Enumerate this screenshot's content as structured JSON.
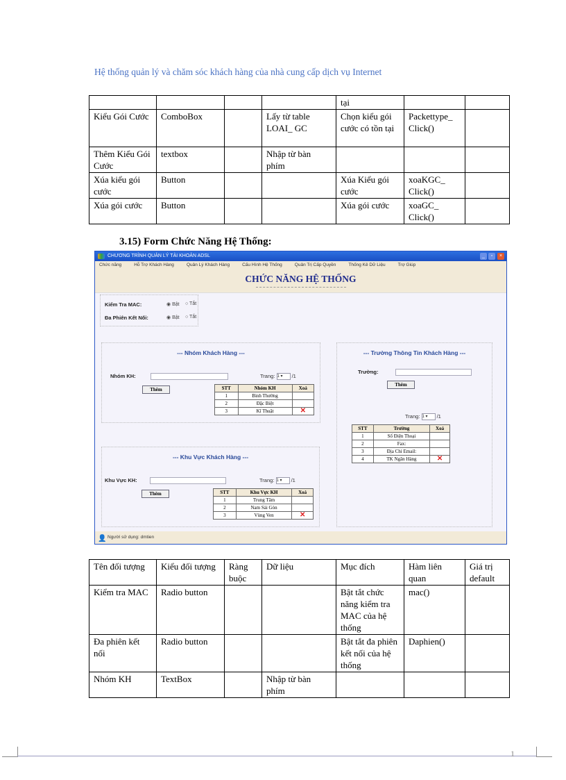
{
  "header": "Hệ thống quản lý và chăm sóc khách hàng của nhà cung cấp dịch vụ Internet",
  "table1": {
    "rows": [
      [
        "",
        "",
        "",
        "",
        "tại",
        "",
        ""
      ],
      [
        "Kiểu Gói Cước",
        "ComboBox",
        "",
        "Lấy từ table LOAI_ GC",
        "Chọn kiểu gói cước có tồn tại",
        "Packettype_ Click()",
        ""
      ],
      [
        "Thêm Kiểu Gói Cước",
        "textbox",
        "",
        "Nhập từ bàn phím",
        "",
        "",
        ""
      ],
      [
        "Xúa kiểu gói cước",
        "Button",
        "",
        "",
        "Xúa Kiểu gói cước",
        "xoaKGC_ Click()",
        ""
      ],
      [
        "Xúa gói cước",
        "Button",
        "",
        "",
        "Xúa gói cước",
        "xoaGC_ Click()",
        ""
      ]
    ]
  },
  "section_title": "3.15) Form Chức Năng Hệ Thống:",
  "app": {
    "title": "CHƯƠNG TRÌNH QUẢN LÝ TÀI KHOẢN ADSL",
    "menu": [
      "Chức năng",
      "Hỗ Trợ Khách Hàng",
      "Quản Lý Khách Hàng",
      "Cấu Hình Hệ Thống",
      "Quản Trị Cấp Quyền",
      "Thống Kê Dữ Liệu",
      "Trợ Giúp"
    ],
    "heading": "CHỨC NĂNG HỆ THỐNG",
    "mac_label": "Kiểm Tra MAC:",
    "multi_label": "Đa Phiên Kết Nối:",
    "on": "Bật",
    "off": "Tắt",
    "mac_value": "Bật",
    "multi_value": "Bật",
    "add": "Thêm",
    "page_label": "Trang:",
    "page_value": "1",
    "page_total": "/1",
    "nhom": {
      "title": "--- Nhóm Khách Hàng ---",
      "field": "Nhóm KH:",
      "cols": [
        "STT",
        "Nhóm KH",
        "Xoá"
      ],
      "rows": [
        [
          "1",
          "Bình Thường"
        ],
        [
          "2",
          "Đặc Biệt"
        ],
        [
          "3",
          "Kĩ Thuật"
        ]
      ]
    },
    "khuvuc": {
      "title": "--- Khu Vực Khách Hàng ---",
      "field": "Khu Vực KH:",
      "cols": [
        "STT",
        "Khu Vực KH",
        "Xoá"
      ],
      "rows": [
        [
          "1",
          "Trung Tâm"
        ],
        [
          "2",
          "Nam Sài Gòn"
        ],
        [
          "3",
          "Vùng Ven"
        ]
      ]
    },
    "truong": {
      "title": "--- Trường Thông Tin Khách Hàng ---",
      "field": "Trường:",
      "cols": [
        "STT",
        "Trường",
        "Xoá"
      ],
      "rows": [
        [
          "1",
          "Số Điện Thoại"
        ],
        [
          "2",
          "Fax:"
        ],
        [
          "3",
          "Địa Chỉ Email:"
        ],
        [
          "4",
          "TK Ngân Hàng"
        ]
      ]
    },
    "status": "Người sử dụng: dmtien"
  },
  "table2": {
    "rows": [
      [
        "Tên đối tượng",
        "Kiểu đối tượng",
        "Ràng buộc",
        "Dữ liệu",
        "Mục đích",
        "Hàm liên quan",
        "Giá trị default"
      ],
      [
        "Kiểm tra MAC",
        "Radio button",
        "",
        "",
        "Bật tắt chức năng kiểm tra MAC của hệ thống",
        "mac()",
        ""
      ],
      [
        "Đa phiên kết nối",
        "Radio button",
        "",
        "",
        "Bật tắt đa phiên kết nối của hệ thống",
        "Daphien()",
        ""
      ],
      [
        "Nhóm KH",
        "TextBox",
        "",
        "Nhập từ bàn phím",
        "",
        "",
        ""
      ]
    ]
  },
  "page_number": "1"
}
